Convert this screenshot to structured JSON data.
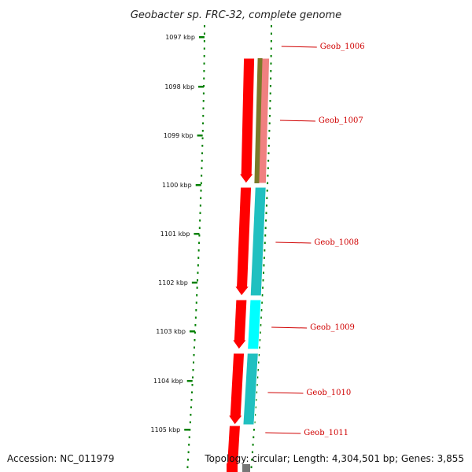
{
  "title": "Geobacter sp. FRC-32, complete genome",
  "accession": "Accession: NC_011979",
  "topology": "Topology: circular; Length: 4,304,501 bp; Genes: 3,855",
  "ticks": [
    "1097 kbp",
    "1098 kbp",
    "1099 kbp",
    "1100 kbp",
    "1101 kbp",
    "1102 kbp",
    "1103 kbp",
    "1104 kbp",
    "1105 kbp"
  ],
  "genes": [
    {
      "label": "Geob_1006",
      "outer_color": "#22cc22",
      "inner_color": "#ff0000",
      "strand": "reverse"
    },
    {
      "label": "Geob_1007",
      "outer_color": "#f08080",
      "inner_color": "#ff0000",
      "strand": "reverse"
    },
    {
      "label": "Geob_1008",
      "outer_color": "#20c0c0",
      "inner_color": "#ff0000",
      "strand": "reverse"
    },
    {
      "label": "Geob_1009",
      "outer_color": "#00ffff",
      "inner_color": "#ff0000",
      "strand": "reverse"
    },
    {
      "label": "Geob_1010",
      "outer_color": "#20c0c0",
      "inner_color": "#ff0000",
      "strand": "reverse"
    },
    {
      "label": "Geob_1011",
      "outer_color": "#ff0000",
      "inner_color": "#ff0000",
      "strand": "reverse"
    }
  ],
  "colors": {
    "backbone": "#8a8a8a",
    "tick": "#008000",
    "leader": "#d00000",
    "gene_inner": "#ff0000"
  }
}
